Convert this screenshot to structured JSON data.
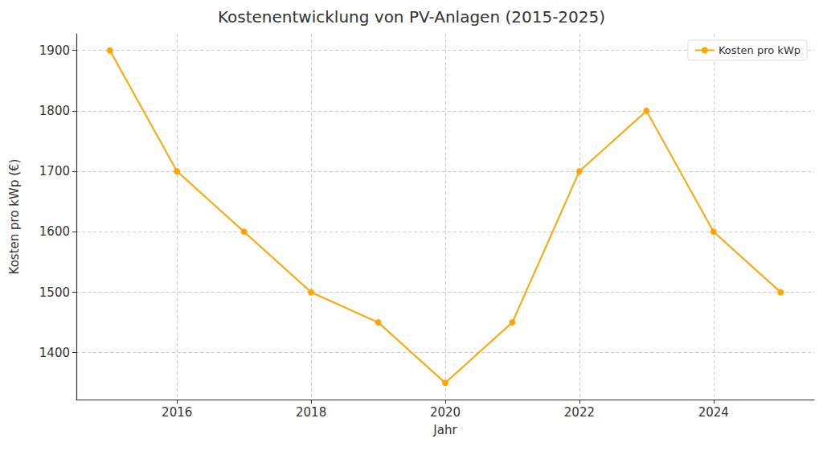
{
  "chart_data": {
    "type": "line",
    "title": "Kostenentwicklung von PV-Anlagen (2015-2025)",
    "x_label": "Jahr",
    "y_label": "Kosten pro kWp (€)",
    "x": [
      2015,
      2016,
      2017,
      2018,
      2019,
      2020,
      2021,
      2022,
      2023,
      2024,
      2025
    ],
    "series": [
      {
        "name": "Kosten pro kWp",
        "color": "#ffa500",
        "marker": "circle",
        "line_style": "solid",
        "values": [
          1900,
          1700,
          1600,
          1500,
          1450,
          1350,
          1450,
          1700,
          1800,
          1600,
          1500
        ]
      }
    ],
    "xlim": [
      2014.5,
      2025.5
    ],
    "xticks": [
      2016,
      2018,
      2020,
      2022,
      2024
    ],
    "ylim": [
      1322.5,
      1927.5
    ],
    "yticks": [
      1400,
      1500,
      1600,
      1700,
      1800,
      1900
    ],
    "grid": true,
    "legend": "upper right"
  }
}
